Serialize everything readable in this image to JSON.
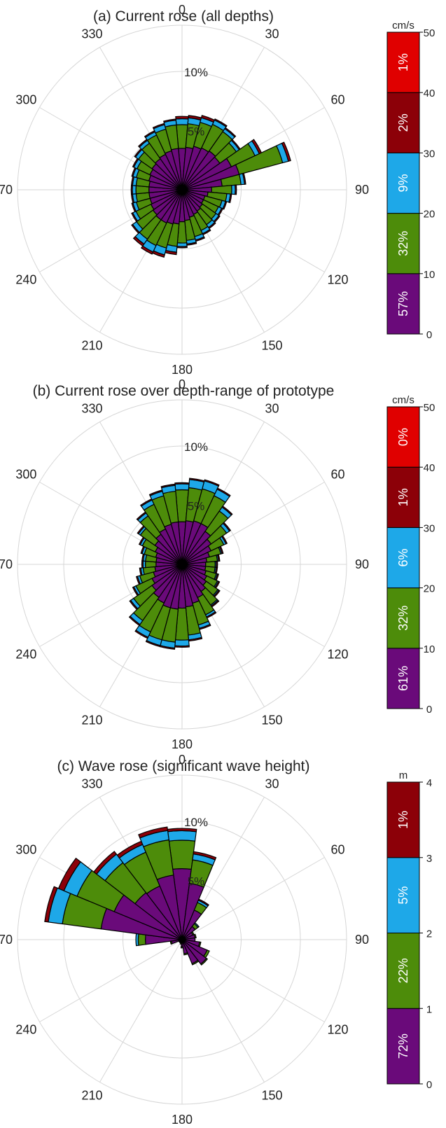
{
  "colors": {
    "bin1": "#6a0a7a",
    "bin2": "#4d8c0a",
    "bin3": "#1ea8e8",
    "bin4": "#8c0008",
    "bin5": "#e00000",
    "grid": "#d6d6d6",
    "bar_edge": "#000000"
  },
  "chart_data": [
    {
      "type": "polar-bar",
      "title": "(a) Current rose (all depths)",
      "angle_ticks": [
        "0",
        "30",
        "60",
        "90",
        "120",
        "150",
        "180",
        "210",
        "240",
        "270",
        "300",
        "330"
      ],
      "radial_ticks": [
        {
          "value": 5,
          "label": "5%"
        },
        {
          "value": 10,
          "label": "10%"
        }
      ],
      "rmax": 13.9,
      "sector_width_deg": 10,
      "colorbar": {
        "unit": "cm/s",
        "ticks": [
          "0",
          "10",
          "20",
          "30",
          "40",
          "50"
        ],
        "percentages": [
          "57%",
          "32%",
          "9%",
          "2%",
          "1%"
        ]
      },
      "directions": [
        0,
        10,
        20,
        30,
        40,
        50,
        60,
        70,
        80,
        90,
        100,
        110,
        120,
        130,
        140,
        150,
        160,
        170,
        180,
        190,
        200,
        210,
        220,
        230,
        240,
        250,
        260,
        270,
        280,
        290,
        300,
        310,
        320,
        330,
        340,
        350
      ],
      "cumulative": [
        [
          3.5,
          5.5,
          6.0,
          6.2,
          6.2
        ],
        [
          3.6,
          5.6,
          6.1,
          6.3,
          6.3
        ],
        [
          3.8,
          5.9,
          6.3,
          6.5,
          6.5
        ],
        [
          3.9,
          6.1,
          6.5,
          6.6,
          6.6
        ],
        [
          4.0,
          6.0,
          6.3,
          6.4,
          6.4
        ],
        [
          3.9,
          5.6,
          5.9,
          6.0,
          6.0
        ],
        [
          4.6,
          6.8,
          7.2,
          7.4,
          7.4
        ],
        [
          5.0,
          8.8,
          9.3,
          9.5,
          9.5
        ],
        [
          3.4,
          5.0,
          5.3,
          5.4,
          5.4
        ],
        [
          2.5,
          4.2,
          4.5,
          4.6,
          4.6
        ],
        [
          2.2,
          3.8,
          4.1,
          4.2,
          4.2
        ],
        [
          2.0,
          3.5,
          3.8,
          3.9,
          3.9
        ],
        [
          2.0,
          3.4,
          3.7,
          3.8,
          3.8
        ],
        [
          2.1,
          3.5,
          3.8,
          3.9,
          3.9
        ],
        [
          2.2,
          3.6,
          3.9,
          4.0,
          4.0
        ],
        [
          2.3,
          3.8,
          4.1,
          4.2,
          4.2
        ],
        [
          2.4,
          4.1,
          4.4,
          4.5,
          4.5
        ],
        [
          2.6,
          4.3,
          4.6,
          4.7,
          4.7
        ],
        [
          2.7,
          4.5,
          4.8,
          4.9,
          4.9
        ],
        [
          2.9,
          4.8,
          5.3,
          5.5,
          5.5
        ],
        [
          3.0,
          5.1,
          5.7,
          5.9,
          5.9
        ],
        [
          3.1,
          5.2,
          5.8,
          6.0,
          6.0
        ],
        [
          3.1,
          5.1,
          5.6,
          5.8,
          5.8
        ],
        [
          3.0,
          4.7,
          5.1,
          5.2,
          5.2
        ],
        [
          2.9,
          4.3,
          4.6,
          4.7,
          4.7
        ],
        [
          2.8,
          4.0,
          4.3,
          4.4,
          4.4
        ],
        [
          2.8,
          3.9,
          4.2,
          4.3,
          4.3
        ],
        [
          2.8,
          3.9,
          4.2,
          4.3,
          4.3
        ],
        [
          2.8,
          3.9,
          4.2,
          4.3,
          4.3
        ],
        [
          2.9,
          4.0,
          4.3,
          4.4,
          4.4
        ],
        [
          3.0,
          4.2,
          4.5,
          4.6,
          4.6
        ],
        [
          3.1,
          4.5,
          4.8,
          4.9,
          4.9
        ],
        [
          3.2,
          4.8,
          5.1,
          5.2,
          5.2
        ],
        [
          3.3,
          5.1,
          5.4,
          5.5,
          5.5
        ],
        [
          3.4,
          5.3,
          5.7,
          5.8,
          5.8
        ],
        [
          3.5,
          5.5,
          5.9,
          6.0,
          6.0
        ]
      ]
    },
    {
      "type": "polar-bar",
      "title": "(b) Current rose over depth-range of prototype",
      "angle_ticks": [
        "0",
        "30",
        "60",
        "90",
        "120",
        "150",
        "180",
        "210",
        "240",
        "270",
        "300",
        "330"
      ],
      "radial_ticks": [
        {
          "value": 5,
          "label": "5%"
        },
        {
          "value": 10,
          "label": "10%"
        }
      ],
      "rmax": 13.9,
      "sector_width_deg": 10,
      "colorbar": {
        "unit": "cm/s",
        "ticks": [
          "0",
          "10",
          "20",
          "30",
          "40",
          "50"
        ],
        "percentages": [
          "61%",
          "32%",
          "6%",
          "1%",
          "0%"
        ]
      },
      "directions": [
        0,
        10,
        20,
        30,
        40,
        50,
        60,
        70,
        80,
        90,
        100,
        110,
        120,
        130,
        140,
        150,
        160,
        170,
        180,
        190,
        200,
        210,
        220,
        230,
        240,
        250,
        260,
        270,
        280,
        290,
        300,
        310,
        320,
        330,
        340,
        350
      ],
      "cumulative": [
        [
          3.6,
          6.3,
          6.8,
          6.9,
          6.9
        ],
        [
          3.7,
          6.5,
          7.2,
          7.3,
          7.3
        ],
        [
          3.8,
          6.6,
          7.3,
          7.4,
          7.4
        ],
        [
          3.8,
          6.4,
          7.0,
          7.1,
          7.1
        ],
        [
          3.4,
          5.5,
          5.9,
          6.0,
          6.0
        ],
        [
          3.0,
          4.6,
          4.9,
          5.0,
          5.0
        ],
        [
          2.7,
          3.9,
          4.1,
          4.2,
          4.2
        ],
        [
          2.4,
          3.4,
          3.5,
          3.6,
          3.6
        ],
        [
          2.1,
          3.0,
          3.1,
          3.2,
          3.2
        ],
        [
          2.0,
          2.8,
          2.9,
          3.0,
          3.0
        ],
        [
          2.0,
          2.8,
          2.9,
          3.0,
          3.0
        ],
        [
          2.1,
          3.0,
          3.1,
          3.2,
          3.2
        ],
        [
          2.3,
          3.3,
          3.4,
          3.5,
          3.5
        ],
        [
          2.5,
          3.7,
          3.8,
          3.9,
          3.9
        ],
        [
          2.8,
          4.2,
          4.3,
          4.4,
          4.4
        ],
        [
          3.1,
          4.7,
          4.9,
          5.0,
          5.0
        ],
        [
          3.4,
          5.3,
          5.6,
          5.7,
          5.7
        ],
        [
          3.6,
          6.0,
          6.4,
          6.5,
          6.5
        ],
        [
          3.7,
          6.4,
          6.9,
          7.0,
          7.0
        ],
        [
          3.8,
          6.6,
          7.1,
          7.2,
          7.2
        ],
        [
          3.8,
          6.6,
          7.1,
          7.2,
          7.2
        ],
        [
          3.6,
          6.3,
          6.8,
          6.9,
          6.9
        ],
        [
          3.4,
          5.8,
          6.2,
          6.3,
          6.3
        ],
        [
          3.1,
          5.0,
          5.3,
          5.4,
          5.4
        ],
        [
          2.8,
          4.3,
          4.5,
          4.6,
          4.6
        ],
        [
          2.5,
          3.7,
          3.9,
          4.0,
          4.0
        ],
        [
          2.3,
          3.3,
          3.5,
          3.6,
          3.6
        ],
        [
          2.2,
          3.1,
          3.3,
          3.4,
          3.4
        ],
        [
          2.2,
          3.1,
          3.3,
          3.4,
          3.4
        ],
        [
          2.3,
          3.3,
          3.5,
          3.6,
          3.6
        ],
        [
          2.5,
          3.7,
          3.9,
          4.0,
          4.0
        ],
        [
          2.8,
          4.3,
          4.5,
          4.6,
          4.6
        ],
        [
          3.1,
          5.0,
          5.3,
          5.4,
          5.4
        ],
        [
          3.3,
          5.6,
          6.0,
          6.1,
          6.1
        ],
        [
          3.5,
          6.0,
          6.4,
          6.5,
          6.5
        ],
        [
          3.6,
          6.2,
          6.7,
          6.8,
          6.8
        ]
      ]
    },
    {
      "type": "polar-bar",
      "title": "(c) Wave rose (significant wave height)",
      "angle_ticks": [
        "0",
        "30",
        "60",
        "90",
        "120",
        "150",
        "180",
        "210",
        "240",
        "270",
        "300",
        "330"
      ],
      "radial_ticks": [
        {
          "value": 5,
          "label": "5%"
        },
        {
          "value": 10,
          "label": "10%"
        }
      ],
      "rmax": 13.9,
      "sector_width_deg": 15,
      "colorbar": {
        "unit": "m",
        "ticks": [
          "0",
          "1",
          "2",
          "3",
          "4"
        ],
        "percentages": [
          "72%",
          "22%",
          "5%",
          "1%"
        ]
      },
      "directions": [
        0,
        15,
        30,
        45,
        60,
        75,
        90,
        105,
        120,
        135,
        150,
        165,
        180,
        195,
        210,
        225,
        240,
        255,
        270,
        285,
        300,
        315,
        330,
        345
      ],
      "cumulative": [
        [
          6.0,
          8.4,
          9.2,
          9.4
        ],
        [
          4.8,
          6.8,
          7.3,
          7.5
        ],
        [
          2.7,
          3.4,
          3.6,
          3.7
        ],
        [
          1.4,
          1.7,
          1.8,
          1.8
        ],
        [
          1.0,
          1.1,
          1.1,
          1.1
        ],
        [
          1.1,
          1.2,
          1.2,
          1.2
        ],
        [
          1.1,
          1.1,
          1.1,
          1.1
        ],
        [
          1.5,
          1.6,
          1.6,
          1.6
        ],
        [
          2.3,
          2.5,
          2.5,
          2.5
        ],
        [
          2.6,
          2.7,
          2.7,
          2.7
        ],
        [
          2.2,
          2.3,
          2.3,
          2.3
        ],
        [
          1.2,
          1.3,
          1.3,
          1.3
        ],
        [
          0.6,
          0.7,
          0.7,
          0.7
        ],
        [
          0.3,
          0.4,
          0.4,
          0.4
        ],
        [
          0.3,
          0.3,
          0.3,
          0.3
        ],
        [
          0.3,
          0.3,
          0.3,
          0.3
        ],
        [
          0.3,
          0.3,
          0.3,
          0.3
        ],
        [
          0.9,
          1.0,
          1.0,
          1.0
        ],
        [
          3.1,
          3.7,
          3.9,
          3.9
        ],
        [
          6.9,
          10.2,
          11.4,
          11.7
        ],
        [
          6.2,
          9.6,
          10.8,
          11.3
        ],
        [
          5.0,
          8.2,
          9.1,
          9.4
        ],
        [
          4.9,
          8.0,
          8.7,
          9.0
        ],
        [
          5.5,
          8.5,
          9.3,
          9.6
        ]
      ]
    }
  ]
}
